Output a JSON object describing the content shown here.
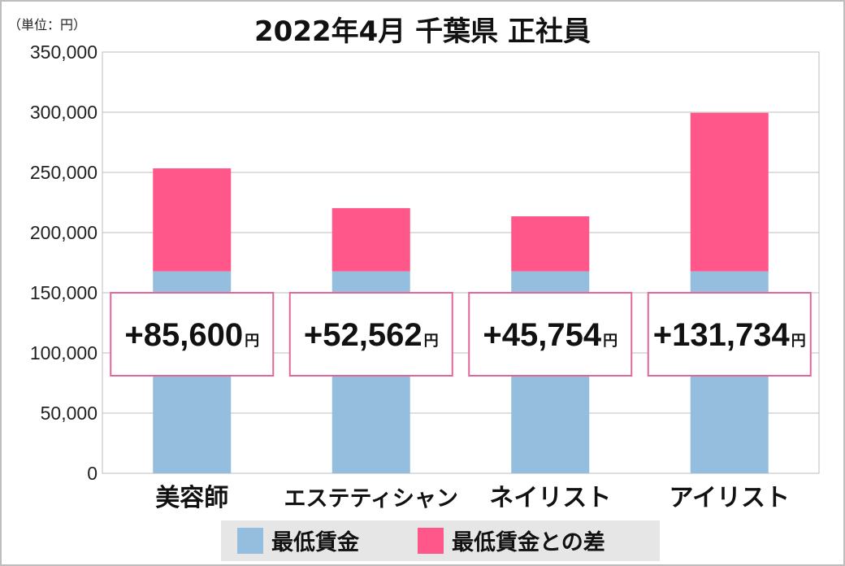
{
  "chart_data": {
    "type": "bar",
    "stacked": true,
    "title": "2022年4月 千葉県 正社員",
    "unit_label": "（単位：円）",
    "categories": [
      "美容師",
      "エステティシャン",
      "ネイリスト",
      "アイリスト"
    ],
    "series": [
      {
        "name": "最低賃金",
        "values": [
          167766,
          167766,
          167766,
          167766
        ],
        "color": "#95bede"
      },
      {
        "name": "最低賃金との差",
        "values": [
          85600,
          52562,
          45754,
          131734
        ],
        "color": "#ff5789"
      }
    ],
    "difference_labels": [
      "+85,600",
      "+52,562",
      "+45,754",
      "+131,734"
    ],
    "difference_unit": "円",
    "y_ticks": [
      "0",
      "50,000",
      "100,000",
      "150,000",
      "200,000",
      "250,000",
      "300,000",
      "350,000"
    ],
    "ylim": [
      0,
      350000
    ],
    "grid": true,
    "legend_position": "bottom"
  }
}
